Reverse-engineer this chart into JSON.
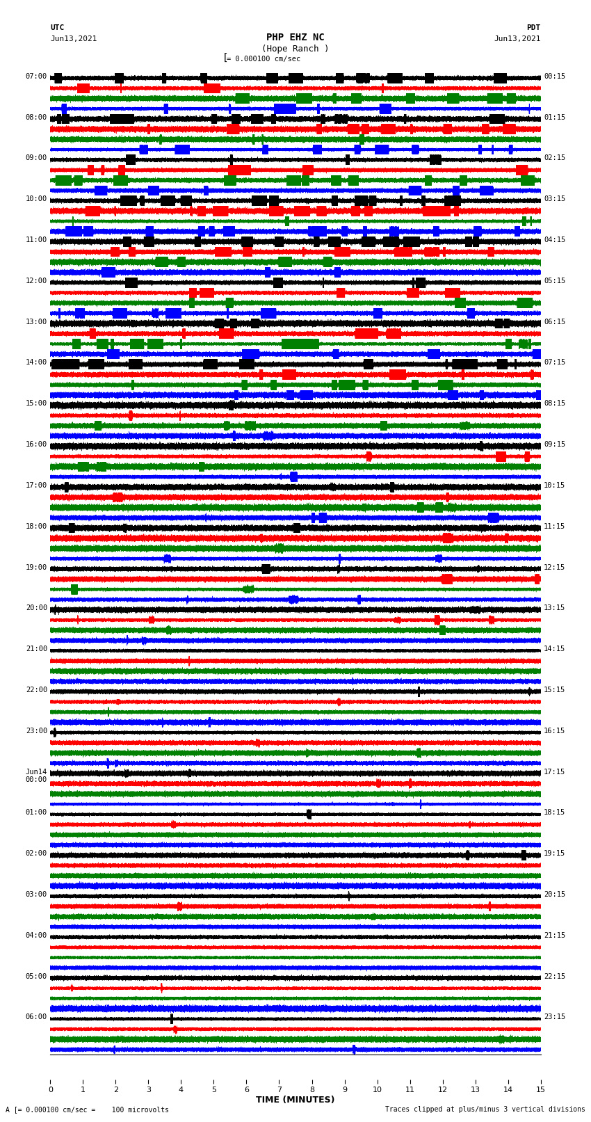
{
  "title_line1": "PHP EHZ NC",
  "title_line2": "(Hope Ranch )",
  "scale_label": "= 0.000100 cm/sec",
  "left_header1": "UTC",
  "left_header2": "Jun13,2021",
  "right_header1": "PDT",
  "right_header2": "Jun13,2021",
  "footer_left": "= 0.000100 cm/sec =    100 microvolts",
  "footer_right": "Traces clipped at plus/minus 3 vertical divisions",
  "xlabel": "TIME (MINUTES)",
  "left_times": [
    "07:00",
    "08:00",
    "09:00",
    "10:00",
    "11:00",
    "12:00",
    "13:00",
    "14:00",
    "15:00",
    "16:00",
    "17:00",
    "18:00",
    "19:00",
    "20:00",
    "21:00",
    "22:00",
    "23:00",
    "Jun14\n00:00",
    "01:00",
    "02:00",
    "03:00",
    "04:00",
    "05:00",
    "06:00"
  ],
  "right_times": [
    "00:15",
    "01:15",
    "02:15",
    "03:15",
    "04:15",
    "05:15",
    "06:15",
    "07:15",
    "08:15",
    "09:15",
    "10:15",
    "11:15",
    "12:15",
    "13:15",
    "14:15",
    "15:15",
    "16:15",
    "17:15",
    "18:15",
    "19:15",
    "20:15",
    "21:15",
    "22:15",
    "23:15"
  ],
  "n_rows": 24,
  "n_traces_per_row": 4,
  "colors": [
    "black",
    "red",
    "green",
    "blue"
  ],
  "background_color": "white",
  "time_minutes": 15,
  "sample_rate": 100,
  "seed": 42,
  "figwidth": 8.5,
  "figheight": 16.13,
  "dpi": 100
}
